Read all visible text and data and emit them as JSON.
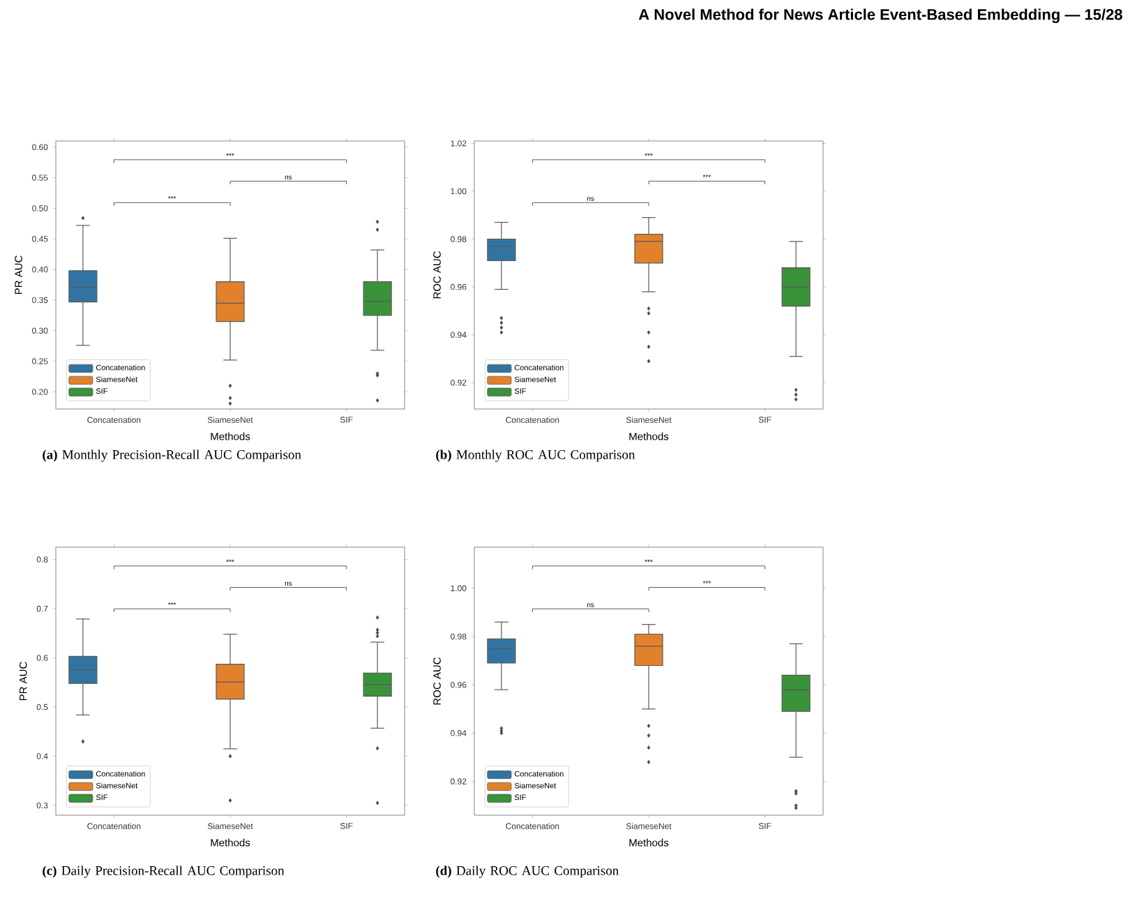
{
  "chart_data": [
    {
      "type": "other",
      "title": "A Novel Method for News Article Event-Based Embedding — 15/28"
    },
    {
      "type": "box",
      "title": "**(a)** Monthly Precision-Recall AUC Comparison",
      "xlabel": "Methods",
      "ylabel": "PR AUC",
      "categories": [
        "Concatenation",
        "SiameseNet",
        "SIF"
      ],
      "ylim": [
        0.172,
        0.61
      ],
      "yticks": [
        {
          "value": 0.2,
          "label": "0.20"
        },
        {
          "value": 0.25,
          "label": "0.25"
        },
        {
          "value": 0.3,
          "label": "0.30"
        },
        {
          "value": 0.35,
          "label": "0.35"
        },
        {
          "value": 0.4,
          "label": "0.40"
        },
        {
          "value": 0.45,
          "label": "0.45"
        },
        {
          "value": 0.5,
          "label": "0.50"
        },
        {
          "value": 0.55,
          "label": "0.55"
        },
        {
          "value": 0.6,
          "label": "0.60"
        }
      ],
      "legend": "bottom left",
      "marker": "diamond",
      "annotations": [
        "***",
        "ns",
        "***"
      ],
      "series": [
        {
          "name": "Concatenation",
          "color": "#3274a1",
          "boxes": [
            {
              "low": 0.276,
              "q1": 0.347,
              "median": 0.371,
              "q3": 0.398,
              "high": 0.472,
              "outliers": [
                0.484
              ]
            },
            null,
            null
          ]
        },
        {
          "name": "SiameseNet",
          "color": "#e1812c",
          "boxes": [
            null,
            {
              "low": 0.252,
              "q1": 0.315,
              "median": 0.345,
              "q3": 0.38,
              "high": 0.451,
              "outliers": [
                0.21,
                0.19,
                0.181
              ]
            },
            null
          ]
        },
        {
          "name": "SIF",
          "color": "#3a923a",
          "boxes": [
            null,
            null,
            {
              "low": 0.268,
              "q1": 0.325,
              "median": 0.348,
              "q3": 0.38,
              "high": 0.432,
              "outliers": [
                0.478,
                0.465,
                0.23,
                0.227,
                0.186
              ]
            }
          ]
        }
      ]
    },
    {
      "type": "box",
      "title": "**(b)** Monthly ROC AUC Comparison",
      "xlabel": "Methods",
      "ylabel": "ROC AUC",
      "categories": [
        "Concatenation",
        "SiameseNet",
        "SIF"
      ],
      "ylim": [
        0.909,
        1.021
      ],
      "yticks": [
        {
          "value": 0.92,
          "label": "0.92"
        },
        {
          "value": 0.94,
          "label": "0.94"
        },
        {
          "value": 0.96,
          "label": "0.96"
        },
        {
          "value": 0.98,
          "label": "0.98"
        },
        {
          "value": 1.0,
          "label": "1.00"
        },
        {
          "value": 1.02,
          "label": "1.02"
        }
      ],
      "legend": "bottom left",
      "marker": "diamond",
      "annotations": [
        "ns",
        "***",
        "***"
      ],
      "series": [
        {
          "name": "Concatenation",
          "color": "#3274a1",
          "boxes": [
            {
              "low": 0.959,
              "q1": 0.971,
              "median": 0.977,
              "q3": 0.98,
              "high": 0.987,
              "outliers": [
                0.947,
                0.945,
                0.943,
                0.941
              ]
            },
            null,
            null
          ]
        },
        {
          "name": "SiameseNet",
          "color": "#e1812c",
          "boxes": [
            null,
            {
              "low": 0.958,
              "q1": 0.97,
              "median": 0.979,
              "q3": 0.982,
              "high": 0.989,
              "outliers": [
                0.951,
                0.949,
                0.941,
                0.935,
                0.929
              ]
            },
            null
          ]
        },
        {
          "name": "SIF",
          "color": "#3a923a",
          "boxes": [
            null,
            null,
            {
              "low": 0.931,
              "q1": 0.952,
              "median": 0.96,
              "q3": 0.968,
              "high": 0.979,
              "outliers": [
                0.917,
                0.915,
                0.913
              ]
            }
          ]
        }
      ]
    },
    {
      "type": "box",
      "title": "**(c)** Daily Precision-Recall AUC Comparison",
      "xlabel": "Methods",
      "ylabel": "PR AUC",
      "categories": [
        "Concatenation",
        "SiameseNet",
        "SIF"
      ],
      "ylim": [
        0.28,
        0.825
      ],
      "yticks": [
        0.3,
        0.4,
        0.5,
        0.6,
        0.7,
        0.8
      ],
      "legend": "bottom left",
      "marker": "diamond",
      "annotations": [
        "***",
        "ns",
        "***"
      ],
      "series": [
        {
          "name": "Concatenation",
          "color": "#3274a1",
          "boxes": [
            {
              "low": 0.484,
              "q1": 0.548,
              "median": 0.576,
              "q3": 0.603,
              "high": 0.679,
              "outliers": [
                0.43
              ]
            },
            null,
            null
          ]
        },
        {
          "name": "SiameseNet",
          "color": "#e1812c",
          "boxes": [
            null,
            {
              "low": 0.415,
              "q1": 0.516,
              "median": 0.551,
              "q3": 0.587,
              "high": 0.648,
              "outliers": [
                0.4,
                0.31
              ]
            },
            null
          ]
        },
        {
          "name": "SIF",
          "color": "#3a923a",
          "boxes": [
            null,
            null,
            {
              "low": 0.457,
              "q1": 0.522,
              "median": 0.546,
              "q3": 0.569,
              "high": 0.632,
              "outliers": [
                0.682,
                0.657,
                0.651,
                0.644,
                0.416,
                0.305
              ]
            }
          ]
        }
      ]
    },
    {
      "type": "box",
      "title": "**(d)** Daily ROC AUC Comparison",
      "xlabel": "Methods",
      "ylabel": "ROC AUC",
      "categories": [
        "Concatenation",
        "SiameseNet",
        "SIF"
      ],
      "ylim": [
        0.906,
        1.017
      ],
      "yticks": [
        {
          "value": 0.92,
          "label": "0.92"
        },
        {
          "value": 0.94,
          "label": "0.94"
        },
        {
          "value": 0.96,
          "label": "0.96"
        },
        {
          "value": 0.98,
          "label": "0.98"
        },
        {
          "value": 1.0,
          "label": "1.00"
        }
      ],
      "legend": "bottom left",
      "marker": "diamond",
      "annotations": [
        "ns",
        "***",
        "***"
      ],
      "series": [
        {
          "name": "Concatenation",
          "color": "#3274a1",
          "boxes": [
            {
              "low": 0.958,
              "q1": 0.969,
              "median": 0.975,
              "q3": 0.979,
              "high": 0.986,
              "outliers": [
                0.942,
                0.941,
                0.94
              ]
            },
            null,
            null
          ]
        },
        {
          "name": "SiameseNet",
          "color": "#e1812c",
          "boxes": [
            null,
            {
              "low": 0.95,
              "q1": 0.968,
              "median": 0.976,
              "q3": 0.981,
              "high": 0.985,
              "outliers": [
                0.943,
                0.939,
                0.934,
                0.928
              ]
            },
            null
          ]
        },
        {
          "name": "SIF",
          "color": "#3a923a",
          "boxes": [
            null,
            null,
            {
              "low": 0.93,
              "q1": 0.949,
              "median": 0.958,
              "q3": 0.964,
              "high": 0.977,
              "outliers": [
                0.916,
                0.915,
                0.91,
                0.909
              ]
            }
          ]
        }
      ]
    }
  ]
}
